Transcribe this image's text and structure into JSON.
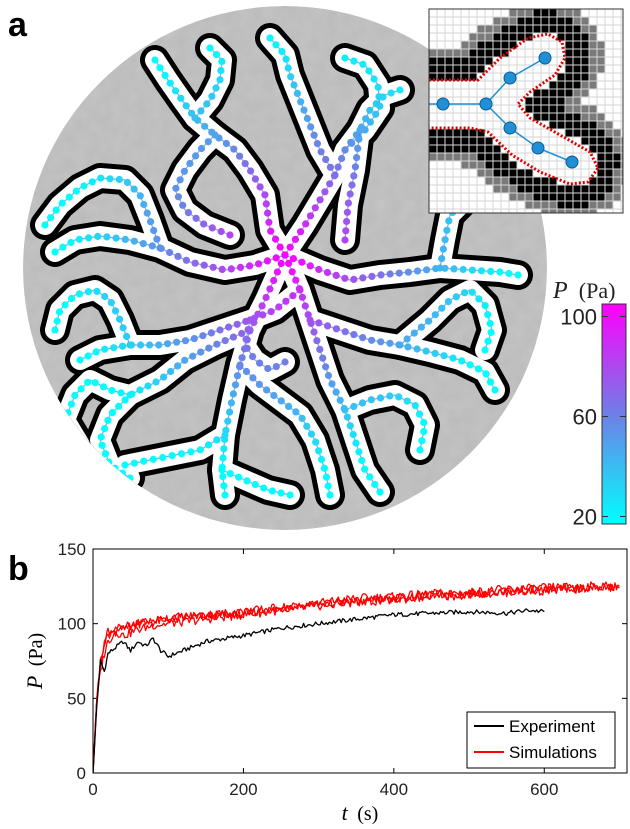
{
  "panel_a": {
    "letter": "a",
    "colorbar": {
      "label_var": "P",
      "label_unit": "(Pa)",
      "ticks": [
        "100",
        "60",
        "20"
      ],
      "tick_values": [
        100,
        60,
        20
      ],
      "range": [
        17,
        105
      ],
      "color_low": "#00ffff",
      "color_high": "#ff00ff"
    },
    "background_color": "#b9b9b9",
    "channel_border_color": "#000000",
    "channel_fill_color": "#ffffff",
    "inset": {
      "grid_color": "#d6d6d6",
      "node_color": "#1f8fd6",
      "boundary_color": "#e00000"
    }
  },
  "panel_b": {
    "letter": "b",
    "chart_data": {
      "type": "line",
      "xlabel_var": "t",
      "xlabel_unit": "(s)",
      "ylabel_var": "P",
      "ylabel_unit": "(Pa)",
      "xlim": [
        0,
        710
      ],
      "ylim": [
        0,
        150
      ],
      "xticks": [
        0,
        200,
        400,
        600
      ],
      "yticks": [
        0,
        50,
        100,
        150
      ],
      "grid": false,
      "legend_position": "bottom-right",
      "series": [
        {
          "name": "Experiment",
          "color": "#000000",
          "points": [
            [
              0,
              0
            ],
            [
              5,
              45
            ],
            [
              10,
              75
            ],
            [
              15,
              68
            ],
            [
              20,
              80
            ],
            [
              30,
              84
            ],
            [
              40,
              88
            ],
            [
              50,
              82
            ],
            [
              60,
              88
            ],
            [
              70,
              85
            ],
            [
              80,
              90
            ],
            [
              90,
              82
            ],
            [
              100,
              78
            ],
            [
              110,
              80
            ],
            [
              130,
              84
            ],
            [
              150,
              88
            ],
            [
              175,
              90
            ],
            [
              200,
              92
            ],
            [
              250,
              97
            ],
            [
              300,
              100
            ],
            [
              350,
              103
            ],
            [
              400,
              106
            ],
            [
              450,
              107
            ],
            [
              500,
              108
            ],
            [
              550,
              107
            ],
            [
              580,
              109
            ],
            [
              600,
              108
            ]
          ]
        },
        {
          "name": "Simulations",
          "color": "#ff0000",
          "points": [
            [
              0,
              0
            ],
            [
              5,
              50
            ],
            [
              10,
              72
            ],
            [
              15,
              85
            ],
            [
              20,
              95
            ],
            [
              30,
              92
            ],
            [
              40,
              100
            ],
            [
              50,
              98
            ],
            [
              60,
              102
            ],
            [
              80,
              101
            ],
            [
              100,
              103
            ],
            [
              150,
              105
            ],
            [
              200,
              107
            ],
            [
              250,
              110
            ],
            [
              300,
              114
            ],
            [
              350,
              117
            ],
            [
              400,
              118
            ],
            [
              450,
              120
            ],
            [
              500,
              121
            ],
            [
              550,
              123
            ],
            [
              600,
              124
            ],
            [
              650,
              125
            ],
            [
              700,
              125
            ]
          ]
        },
        {
          "color": "#ff0000",
          "points": [
            [
              0,
              0
            ],
            [
              5,
              48
            ],
            [
              10,
              68
            ],
            [
              15,
              80
            ],
            [
              20,
              88
            ],
            [
              30,
              95
            ],
            [
              40,
              92
            ],
            [
              60,
              96
            ],
            [
              80,
              99
            ],
            [
              100,
              100
            ],
            [
              150,
              103
            ],
            [
              200,
              106
            ],
            [
              250,
              109
            ],
            [
              300,
              112
            ],
            [
              350,
              115
            ],
            [
              400,
              117
            ],
            [
              450,
              119
            ],
            [
              500,
              120
            ],
            [
              550,
              121
            ],
            [
              600,
              122
            ],
            [
              650,
              124
            ],
            [
              700,
              124
            ]
          ]
        },
        {
          "color": "#ff0000",
          "points": [
            [
              0,
              0
            ],
            [
              5,
              52
            ],
            [
              10,
              74
            ],
            [
              15,
              88
            ],
            [
              20,
              92
            ],
            [
              30,
              98
            ],
            [
              40,
              96
            ],
            [
              60,
              100
            ],
            [
              80,
              102
            ],
            [
              100,
              104
            ],
            [
              150,
              106
            ],
            [
              200,
              108
            ],
            [
              250,
              111
            ],
            [
              300,
              113
            ],
            [
              350,
              114
            ],
            [
              400,
              116
            ],
            [
              450,
              118
            ],
            [
              500,
              119
            ],
            [
              550,
              122
            ],
            [
              600,
              123
            ],
            [
              650,
              123
            ]
          ]
        }
      ]
    }
  }
}
